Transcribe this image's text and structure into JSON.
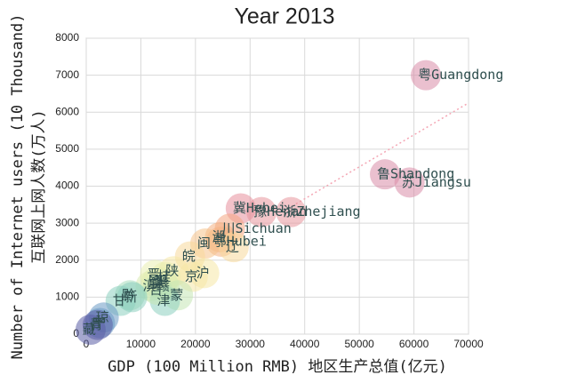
{
  "chart_data": {
    "type": "scatter",
    "title": "Year 2013",
    "xlabel": "GDP (100 Million RMB) 地区生产总值(亿元)",
    "ylabel": "Number of Internet users (10 Thousand)",
    "ylabel2": "互联网上网人数(万人)",
    "xlim": [
      0,
      70000
    ],
    "xticks": [
      0,
      10000,
      20000,
      30000,
      40000,
      50000,
      60000,
      70000
    ],
    "ylim": [
      0,
      8000
    ],
    "yticks": [
      0,
      1000,
      2000,
      3000,
      4000,
      5000,
      6000,
      7000,
      8000
    ],
    "grid": true,
    "x": [
      62200,
      54700,
      59200,
      28300,
      32100,
      37500,
      26300,
      24700,
      24500,
      21800,
      19000,
      21600,
      19500,
      27000,
      16000,
      14000,
      14500,
      12800,
      11800,
      14300,
      16800,
      14400,
      12600,
      13000,
      8000,
      6300,
      8400,
      3200,
      2500,
      2100,
      800
    ],
    "values": [
      7000,
      4320,
      4100,
      3400,
      3300,
      3300,
      2850,
      2500,
      2620,
      2450,
      2100,
      1650,
      1550,
      2350,
      1700,
      1400,
      1550,
      1400,
      1300,
      1300,
      1050,
      900,
      1600,
      1200,
      1050,
      900,
      1000,
      450,
      300,
      250,
      120
    ],
    "labels": [
      "粤Guangdong",
      "鲁Shandong",
      "苏Jiangsu",
      "冀Hebei",
      "豫Henan",
      "浙Zhejiang",
      "川Sichuan",
      "鄂Hubei",
      "湘",
      "闽",
      "皖",
      "沪",
      "京",
      "辽",
      "陕",
      "黑",
      "桂",
      "渝",
      "滇",
      "赣",
      "蒙",
      "津",
      "晋",
      "吉",
      "黔",
      "甘",
      "新",
      "琼",
      "宁",
      "青",
      "藏"
    ],
    "colors": [
      "#d98ca8",
      "#d98ca8",
      "#d98ca8",
      "#e88f9c",
      "#e8969c",
      "#e8969c",
      "#f4a582",
      "#f4b182",
      "#f4b182",
      "#f6c28a",
      "#f7d89a",
      "#f6e8a6",
      "#f6e8a6",
      "#f7d89a",
      "#f6e8a6",
      "#e9eeb0",
      "#e9eeb0",
      "#d9ebb0",
      "#d9ebb0",
      "#d9ebb0",
      "#c5e6b5",
      "#8cd0c0",
      "#e9eeb0",
      "#c5e6b5",
      "#a8dcbc",
      "#8cd0c0",
      "#8cd0c0",
      "#6b9ac4",
      "#6b9ac4",
      "#5b5ea6",
      "#5b5ea6"
    ],
    "trendline": {
      "x": [
        37000,
        70000
      ],
      "y": [
        3400,
        6250
      ],
      "color": "#f4a6b4"
    }
  }
}
